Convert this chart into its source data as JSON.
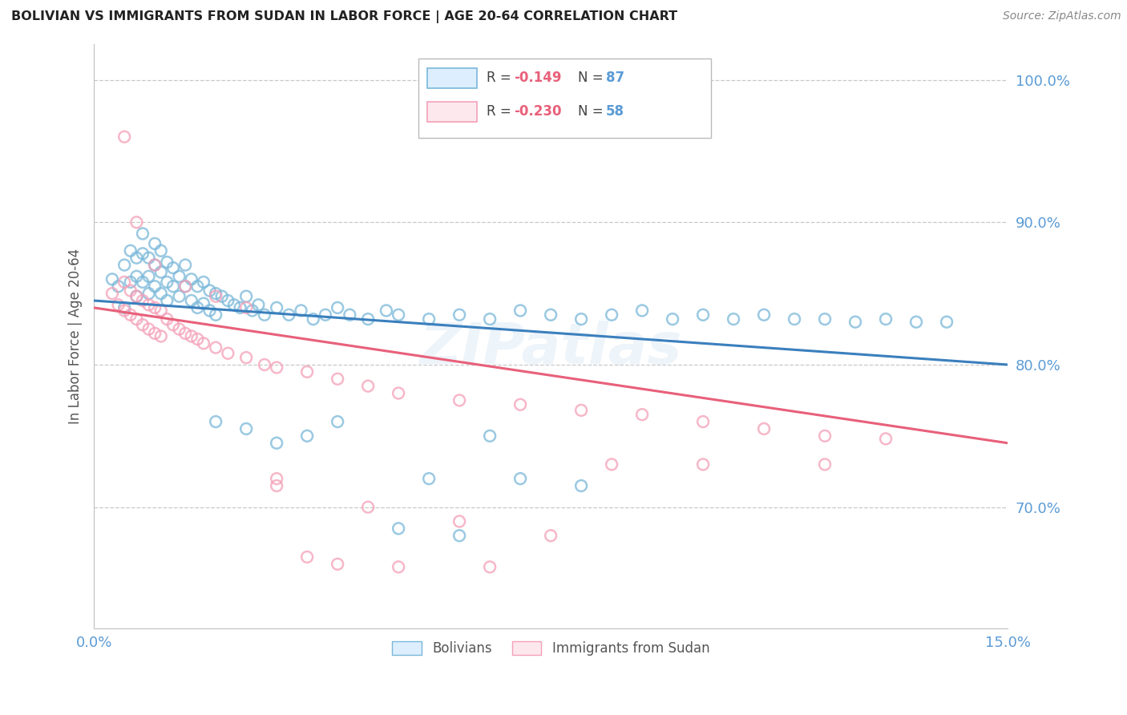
{
  "title": "BOLIVIAN VS IMMIGRANTS FROM SUDAN IN LABOR FORCE | AGE 20-64 CORRELATION CHART",
  "source": "Source: ZipAtlas.com",
  "ylabel": "In Labor Force | Age 20-64",
  "x_min": 0.0,
  "x_max": 0.15,
  "y_min": 0.615,
  "y_max": 1.025,
  "x_ticks": [
    0.0,
    0.15
  ],
  "x_tick_labels": [
    "0.0%",
    "15.0%"
  ],
  "y_ticks": [
    0.7,
    0.8,
    0.9,
    1.0
  ],
  "y_tick_labels": [
    "70.0%",
    "80.0%",
    "90.0%",
    "100.0%"
  ],
  "legend_r_blue": "R = -0.149",
  "legend_n_blue": "N = 87",
  "legend_r_pink": "R = -0.230",
  "legend_n_pink": "N = 58",
  "blue_color": "#7ab8d9",
  "pink_color": "#f4a0b8",
  "blue_line_color": "#3a7fbd",
  "pink_line_color": "#e8607a",
  "axis_color": "#5b9bd5",
  "grid_color": "#c8c8c8",
  "title_color": "#222222",
  "source_color": "#888888",
  "watermark": "ZIPatlas",
  "blue_scatter_x": [
    0.003,
    0.004,
    0.005,
    0.005,
    0.006,
    0.006,
    0.007,
    0.007,
    0.007,
    0.008,
    0.008,
    0.008,
    0.009,
    0.009,
    0.009,
    0.01,
    0.01,
    0.01,
    0.011,
    0.011,
    0.011,
    0.012,
    0.012,
    0.012,
    0.013,
    0.013,
    0.014,
    0.014,
    0.015,
    0.015,
    0.016,
    0.016,
    0.017,
    0.017,
    0.018,
    0.018,
    0.019,
    0.019,
    0.02,
    0.02,
    0.021,
    0.022,
    0.023,
    0.024,
    0.025,
    0.026,
    0.027,
    0.028,
    0.03,
    0.032,
    0.034,
    0.036,
    0.038,
    0.04,
    0.042,
    0.045,
    0.048,
    0.05,
    0.055,
    0.06,
    0.065,
    0.07,
    0.075,
    0.08,
    0.085,
    0.09,
    0.095,
    0.1,
    0.105,
    0.11,
    0.115,
    0.12,
    0.125,
    0.13,
    0.135,
    0.14,
    0.04,
    0.05,
    0.06,
    0.07,
    0.02,
    0.025,
    0.03,
    0.035,
    0.055,
    0.065,
    0.08
  ],
  "blue_scatter_y": [
    0.86,
    0.855,
    0.87,
    0.84,
    0.88,
    0.858,
    0.875,
    0.862,
    0.848,
    0.892,
    0.878,
    0.858,
    0.875,
    0.862,
    0.85,
    0.885,
    0.87,
    0.855,
    0.88,
    0.865,
    0.85,
    0.872,
    0.858,
    0.845,
    0.868,
    0.855,
    0.862,
    0.848,
    0.87,
    0.855,
    0.86,
    0.845,
    0.855,
    0.84,
    0.858,
    0.843,
    0.852,
    0.838,
    0.85,
    0.835,
    0.848,
    0.845,
    0.842,
    0.84,
    0.848,
    0.838,
    0.842,
    0.835,
    0.84,
    0.835,
    0.838,
    0.832,
    0.835,
    0.84,
    0.835,
    0.832,
    0.838,
    0.835,
    0.832,
    0.835,
    0.832,
    0.838,
    0.835,
    0.832,
    0.835,
    0.838,
    0.832,
    0.835,
    0.832,
    0.835,
    0.832,
    0.832,
    0.83,
    0.832,
    0.83,
    0.83,
    0.76,
    0.685,
    0.68,
    0.72,
    0.76,
    0.755,
    0.745,
    0.75,
    0.72,
    0.75,
    0.715
  ],
  "pink_scatter_x": [
    0.003,
    0.004,
    0.005,
    0.005,
    0.006,
    0.006,
    0.007,
    0.007,
    0.008,
    0.008,
    0.009,
    0.009,
    0.01,
    0.01,
    0.011,
    0.011,
    0.012,
    0.013,
    0.014,
    0.015,
    0.016,
    0.017,
    0.018,
    0.02,
    0.022,
    0.025,
    0.028,
    0.03,
    0.035,
    0.04,
    0.045,
    0.05,
    0.06,
    0.07,
    0.08,
    0.09,
    0.1,
    0.11,
    0.12,
    0.13,
    0.005,
    0.007,
    0.01,
    0.015,
    0.02,
    0.025,
    0.03,
    0.035,
    0.04,
    0.05,
    0.065,
    0.085,
    0.1,
    0.12,
    0.03,
    0.045,
    0.06,
    0.075
  ],
  "pink_scatter_y": [
    0.85,
    0.842,
    0.858,
    0.838,
    0.852,
    0.835,
    0.848,
    0.832,
    0.845,
    0.828,
    0.842,
    0.825,
    0.84,
    0.822,
    0.838,
    0.82,
    0.832,
    0.828,
    0.825,
    0.822,
    0.82,
    0.818,
    0.815,
    0.812,
    0.808,
    0.805,
    0.8,
    0.798,
    0.795,
    0.79,
    0.785,
    0.78,
    0.775,
    0.772,
    0.768,
    0.765,
    0.76,
    0.755,
    0.75,
    0.748,
    0.96,
    0.9,
    0.87,
    0.855,
    0.848,
    0.84,
    0.72,
    0.665,
    0.66,
    0.658,
    0.658,
    0.73,
    0.73,
    0.73,
    0.715,
    0.7,
    0.69,
    0.68
  ],
  "blue_trend_x": [
    0.0,
    0.15
  ],
  "blue_trend_y": [
    0.845,
    0.8
  ],
  "pink_trend_x": [
    0.0,
    0.15
  ],
  "pink_trend_y": [
    0.84,
    0.745
  ]
}
